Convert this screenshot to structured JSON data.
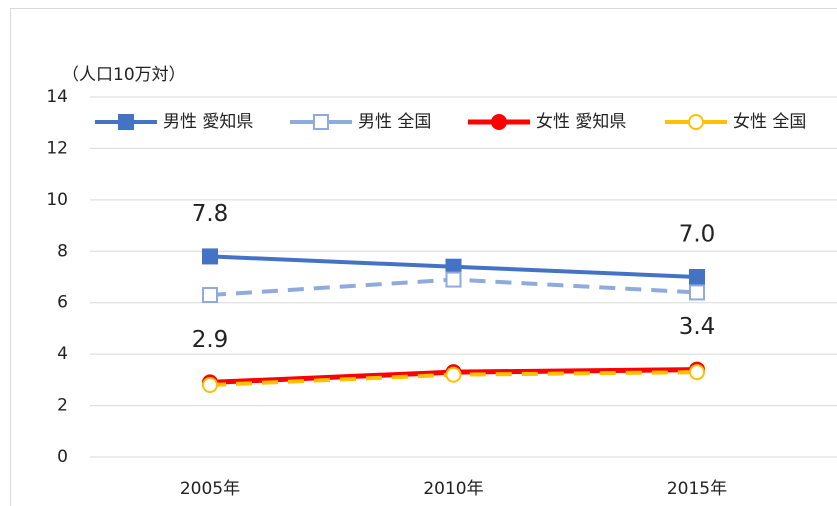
{
  "chart_data": {
    "type": "line",
    "y_label": "（人口10万対）",
    "categories": [
      "2005年",
      "2010年",
      "2015年"
    ],
    "ylim": [
      0,
      14
    ],
    "yticks": [
      0,
      2,
      4,
      6,
      8,
      10,
      12,
      14
    ],
    "grid": true,
    "legend": "top",
    "series": [
      {
        "name": "男性 愛知県",
        "color": "#4472c4",
        "dash": false,
        "marker": "square",
        "filled": true,
        "values": [
          7.8,
          7.4,
          7.0
        ],
        "value_labels": [
          "7.8",
          null,
          "7.0"
        ]
      },
      {
        "name": "男性 全国",
        "color": "#8faadc",
        "dash": true,
        "marker": "square",
        "filled": false,
        "values": [
          6.3,
          6.9,
          6.4
        ]
      },
      {
        "name": "女性 愛知県",
        "color": "#ff0000",
        "dash": false,
        "marker": "circle",
        "filled": true,
        "values": [
          2.9,
          3.3,
          3.4
        ],
        "value_labels": [
          "2.9",
          null,
          "3.4"
        ]
      },
      {
        "name": "女性 全国",
        "color": "#ffc000",
        "dash": true,
        "marker": "circle",
        "filled": false,
        "values": [
          2.8,
          3.2,
          3.3
        ]
      }
    ]
  }
}
